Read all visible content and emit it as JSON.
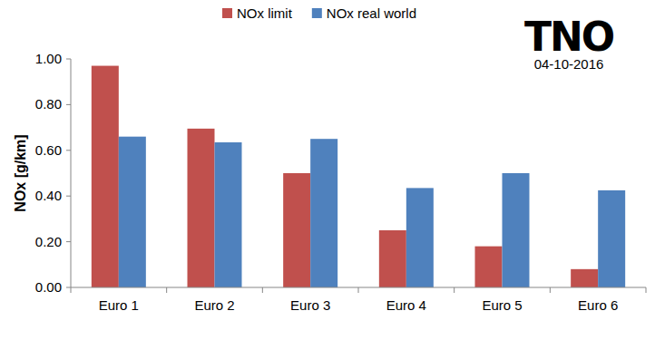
{
  "chart_data": {
    "type": "bar",
    "categories": [
      "Euro 1",
      "Euro 2",
      "Euro 3",
      "Euro 4",
      "Euro 5",
      "Euro 6"
    ],
    "series": [
      {
        "name": "NOx limit",
        "color": "#c0504d",
        "values": [
          0.97,
          0.695,
          0.5,
          0.25,
          0.18,
          0.08
        ]
      },
      {
        "name": "NOx real world",
        "color": "#4f81bd",
        "values": [
          0.66,
          0.635,
          0.65,
          0.435,
          0.5,
          0.425
        ]
      }
    ],
    "y_label": "NOx [g/km]",
    "ylim": [
      0,
      1
    ],
    "yticks": [
      {
        "value": 0,
        "label": "0.00"
      },
      {
        "value": 0.2,
        "label": "0.20"
      },
      {
        "value": 0.4,
        "label": "0.40"
      },
      {
        "value": 0.6,
        "label": "0.60"
      },
      {
        "value": 0.8,
        "label": "0.80"
      },
      {
        "value": 1,
        "label": "1.00"
      }
    ],
    "grid": false,
    "legend": "top",
    "annotations": [
      "TNO",
      "04-10-2016"
    ]
  }
}
